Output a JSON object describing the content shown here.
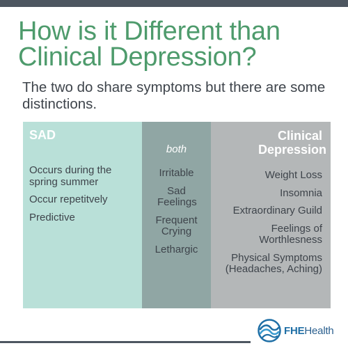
{
  "title": "How is it Different than Clinical Depression?",
  "subtitle": "The two do share symptoms but there are some distinctions.",
  "columns": {
    "sad": {
      "header": "SAD",
      "items": [
        "Occurs during the spring summer",
        "Occur repetitvely",
        "Predictive"
      ]
    },
    "both": {
      "header": "both",
      "items": [
        "Irritable",
        "Sad Feelings",
        "Frequent Crying",
        "Lethargic"
      ]
    },
    "clinical": {
      "header": "Clinical Depression",
      "items": [
        "Weight Loss",
        "Insomnia",
        "Extraordinary Guild",
        "Feelings of Worthlesness",
        "Physical Symptoms (Headaches, Aching)"
      ]
    }
  },
  "logo": {
    "brand": "FHE",
    "suffix": "Health",
    "icon": "wave-globe-icon"
  },
  "colors": {
    "title": "#4e9b6c",
    "text": "#3e444b",
    "sad_column": "#b9e0d8",
    "both_column": "#90a6a4",
    "clinical_column": "#b4b7b8",
    "bars": "#4d5660",
    "logo_blue": "#1f6fa6"
  }
}
